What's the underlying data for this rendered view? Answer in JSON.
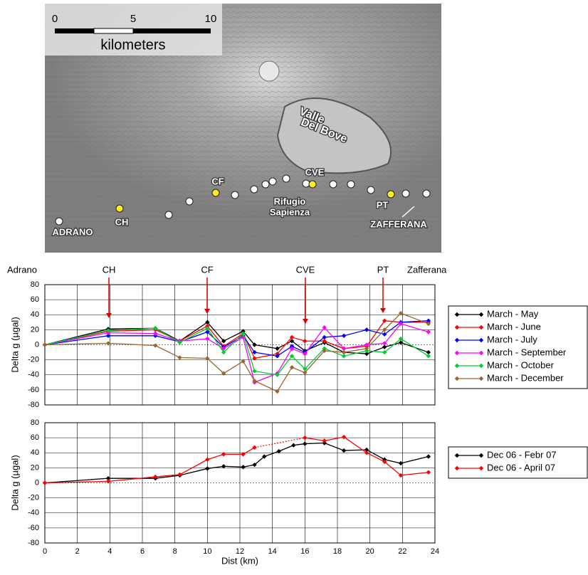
{
  "map": {
    "scale_labels": [
      "0",
      "5",
      "10"
    ],
    "scale_unit": "kilometers",
    "labels": [
      "Valle",
      "Del Bove",
      "CF",
      "CVE",
      "Rifugio",
      "Sapienza",
      "CH",
      "PT",
      "ADRANO",
      "ZAFFERANA"
    ]
  },
  "chart_data": [
    {
      "type": "line",
      "annotations": [
        "Adrano",
        "CH",
        "CF",
        "CVE",
        "PT",
        "Zafferana"
      ],
      "y_label": "Delta g (µgal)",
      "xlim": [
        0,
        24
      ],
      "ylim": [
        -80,
        80
      ],
      "yticks": [
        -80,
        -60,
        -40,
        -20,
        0,
        20,
        40,
        60,
        80
      ],
      "grid": true,
      "x": [
        0,
        3.9,
        6.8,
        8.3,
        10,
        11,
        12.2,
        12.9,
        14.3,
        15.2,
        16,
        17.2,
        18.4,
        19.8,
        20.9,
        21.9,
        23.6
      ],
      "series": [
        {
          "name": "March - May",
          "color": "#000000",
          "values": [
            0,
            21,
            22,
            5,
            30,
            5,
            18,
            0,
            -5,
            5,
            -8,
            3,
            -10,
            -12,
            -3,
            3,
            -10
          ]
        },
        {
          "name": "March - June",
          "color": "#ff0000",
          "values": [
            0,
            18,
            20,
            5,
            25,
            -2,
            15,
            -18,
            -12,
            10,
            5,
            5,
            -5,
            -2,
            32,
            30,
            30
          ]
        },
        {
          "name": "March - July",
          "color": "#0000ff",
          "values": [
            0,
            12,
            12,
            4,
            17,
            -3,
            12,
            -10,
            -15,
            -2,
            -10,
            10,
            12,
            20,
            14,
            30,
            32
          ]
        },
        {
          "name": "March - September",
          "color": "#ff00ff",
          "values": [
            0,
            16,
            15,
            5,
            8,
            -5,
            10,
            -50,
            -38,
            -5,
            -12,
            23,
            -5,
            0,
            2,
            28,
            17
          ]
        },
        {
          "name": "March - October",
          "color": "#00cc33",
          "values": [
            0,
            19,
            22,
            3,
            22,
            -10,
            15,
            -35,
            -40,
            -15,
            -32,
            -5,
            -15,
            -8,
            -10,
            8,
            -15
          ]
        },
        {
          "name": "March - December",
          "color": "#996633",
          "values": [
            0,
            2,
            -1,
            -17,
            -18,
            -38,
            -22,
            -48,
            -62,
            -30,
            -37,
            -8,
            -10,
            -5,
            20,
            42,
            28
          ]
        }
      ]
    },
    {
      "type": "line",
      "y_label": "Delta g (µgal)",
      "x_label": "Dist (km)",
      "xlim": [
        0,
        24
      ],
      "ylim": [
        -80,
        80
      ],
      "xticks": [
        0,
        2,
        4,
        6,
        8,
        10,
        12,
        14,
        16,
        18,
        20,
        22,
        24
      ],
      "yticks": [
        -80,
        -60,
        -40,
        -20,
        0,
        20,
        40,
        60,
        80
      ],
      "grid": true,
      "x": [
        0,
        3.9,
        6.8,
        8.3,
        10,
        11,
        12.2,
        12.9,
        13.5,
        14.4,
        15.3,
        16,
        17.2,
        18.4,
        19.8,
        20.9,
        21.9,
        23.6
      ],
      "series": [
        {
          "name": "Dec 06 - Febr 07",
          "color": "#000000",
          "values": [
            0,
            6,
            6,
            10,
            19,
            22,
            21,
            24,
            35,
            42,
            50,
            52,
            53,
            43,
            44,
            31,
            26,
            35
          ]
        },
        {
          "name": "Dec 06 - April 07",
          "color": "#ff0000",
          "values": [
            0,
            2,
            8,
            11,
            31,
            38,
            38,
            47,
            null,
            null,
            null,
            60,
            56,
            61,
            40,
            28,
            10,
            14
          ]
        }
      ]
    }
  ]
}
